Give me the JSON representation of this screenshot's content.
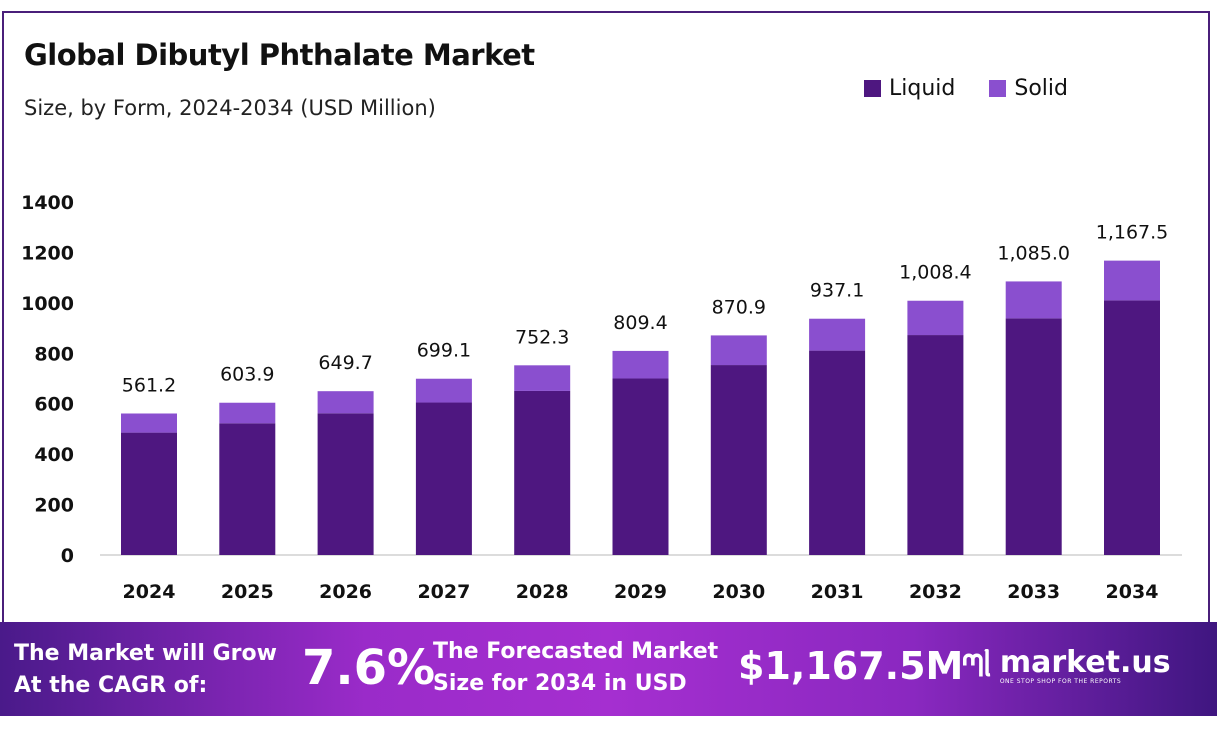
{
  "chart_data": {
    "type": "bar",
    "stacked": true,
    "title": "Global Dibutyl Phthalate Market",
    "subtitle": "Size, by Form, 2024-2034 (USD Million)",
    "categories": [
      "2024",
      "2025",
      "2026",
      "2027",
      "2028",
      "2029",
      "2030",
      "2031",
      "2032",
      "2033",
      "2034"
    ],
    "series": [
      {
        "name": "Liquid",
        "color": "#4e1780",
        "values": [
          485.4,
          522.4,
          562.0,
          604.7,
          650.7,
          700.1,
          753.3,
          810.6,
          872.3,
          938.5,
          1009.9
        ]
      },
      {
        "name": "Solid",
        "color": "#8a4fcf",
        "values": [
          75.8,
          81.5,
          87.7,
          94.4,
          101.6,
          109.3,
          117.6,
          126.5,
          136.1,
          146.5,
          157.6
        ]
      }
    ],
    "totals_labels": [
      "561.2",
      "603.9",
      "649.7",
      "699.1",
      "752.3",
      "809.4",
      "870.9",
      "937.1",
      "1,008.4",
      "1,085.0",
      "1,167.5"
    ],
    "totals": [
      561.2,
      603.9,
      649.7,
      699.1,
      752.3,
      809.4,
      870.9,
      937.1,
      1008.4,
      1085.0,
      1167.5
    ],
    "yticks": [
      "0",
      "200",
      "400",
      "600",
      "800",
      "1000",
      "1200",
      "1400"
    ],
    "ylim": [
      0,
      1400
    ],
    "grid": false,
    "legend_position": "top-right",
    "xlabel": "",
    "ylabel": ""
  },
  "banner": {
    "cagr_text_1": "The Market will Grow",
    "cagr_text_2": "At the CAGR of:",
    "cagr_value": "7.6%",
    "forecast_text_1": "The Forecasted Market",
    "forecast_text_2": "Size for 2034 in USD",
    "forecast_value": "$1,167.5M",
    "brand": "market.us",
    "tagline": "ONE STOP SHOP FOR THE REPORTS"
  }
}
